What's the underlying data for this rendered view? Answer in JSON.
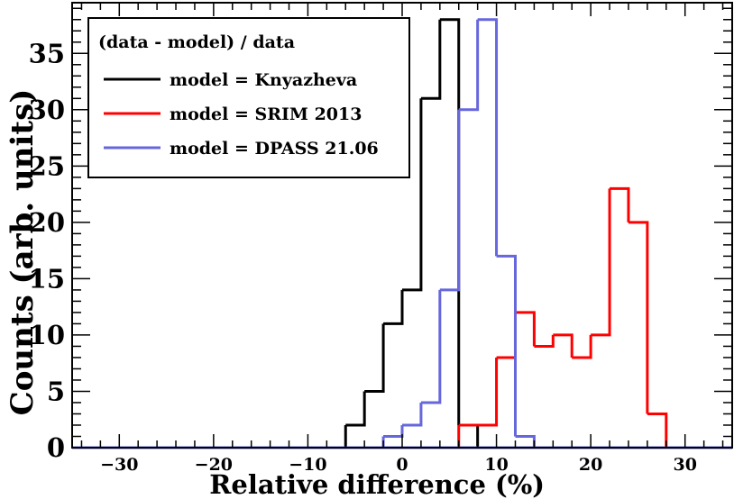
{
  "chart_data": {
    "type": "histogram",
    "xlabel": "Relative difference (%)",
    "ylabel": "Counts (arb. units)",
    "xlim": [
      -35,
      35
    ],
    "ylim": [
      0,
      39.5
    ],
    "bin_width": 2,
    "x_ticks": [
      -30,
      -20,
      -10,
      0,
      10,
      20,
      30
    ],
    "x_tick_labels": [
      "−30",
      "−20",
      "−10",
      "0",
      "10",
      "20",
      "30"
    ],
    "y_ticks": [
      0,
      5,
      10,
      15,
      20,
      25,
      30,
      35
    ],
    "y_tick_labels": [
      "0",
      "5",
      "10",
      "15",
      "20",
      "25",
      "30",
      "35"
    ],
    "legend": {
      "title": "(data - model) / data",
      "placement": "top-left"
    },
    "series": [
      {
        "name": "model = Knyazheva",
        "color": "#000000",
        "bins": [
          {
            "x": -5,
            "count": 2
          },
          {
            "x": -3,
            "count": 5
          },
          {
            "x": -1,
            "count": 11
          },
          {
            "x": 1,
            "count": 14
          },
          {
            "x": 3,
            "count": 31
          },
          {
            "x": 5,
            "count": 38
          },
          {
            "x": 7,
            "count": 2
          },
          {
            "x": 9,
            "count": 0
          }
        ]
      },
      {
        "name": "model = SRIM 2013",
        "color": "#ff0000",
        "bins": [
          {
            "x": 7,
            "count": 2
          },
          {
            "x": 9,
            "count": 2
          },
          {
            "x": 11,
            "count": 8
          },
          {
            "x": 13,
            "count": 12
          },
          {
            "x": 15,
            "count": 9
          },
          {
            "x": 17,
            "count": 10
          },
          {
            "x": 19,
            "count": 8
          },
          {
            "x": 21,
            "count": 10
          },
          {
            "x": 23,
            "count": 23
          },
          {
            "x": 25,
            "count": 20
          },
          {
            "x": 27,
            "count": 3
          },
          {
            "x": 29,
            "count": 0
          }
        ]
      },
      {
        "name": "model = DPASS 21.06",
        "color": "#6666dd",
        "bins": [
          {
            "x": -1,
            "count": 1
          },
          {
            "x": 1,
            "count": 2
          },
          {
            "x": 3,
            "count": 4
          },
          {
            "x": 5,
            "count": 14
          },
          {
            "x": 7,
            "count": 30
          },
          {
            "x": 9,
            "count": 38
          },
          {
            "x": 11,
            "count": 17
          },
          {
            "x": 13,
            "count": 1
          },
          {
            "x": 15,
            "count": 0
          }
        ]
      }
    ]
  }
}
